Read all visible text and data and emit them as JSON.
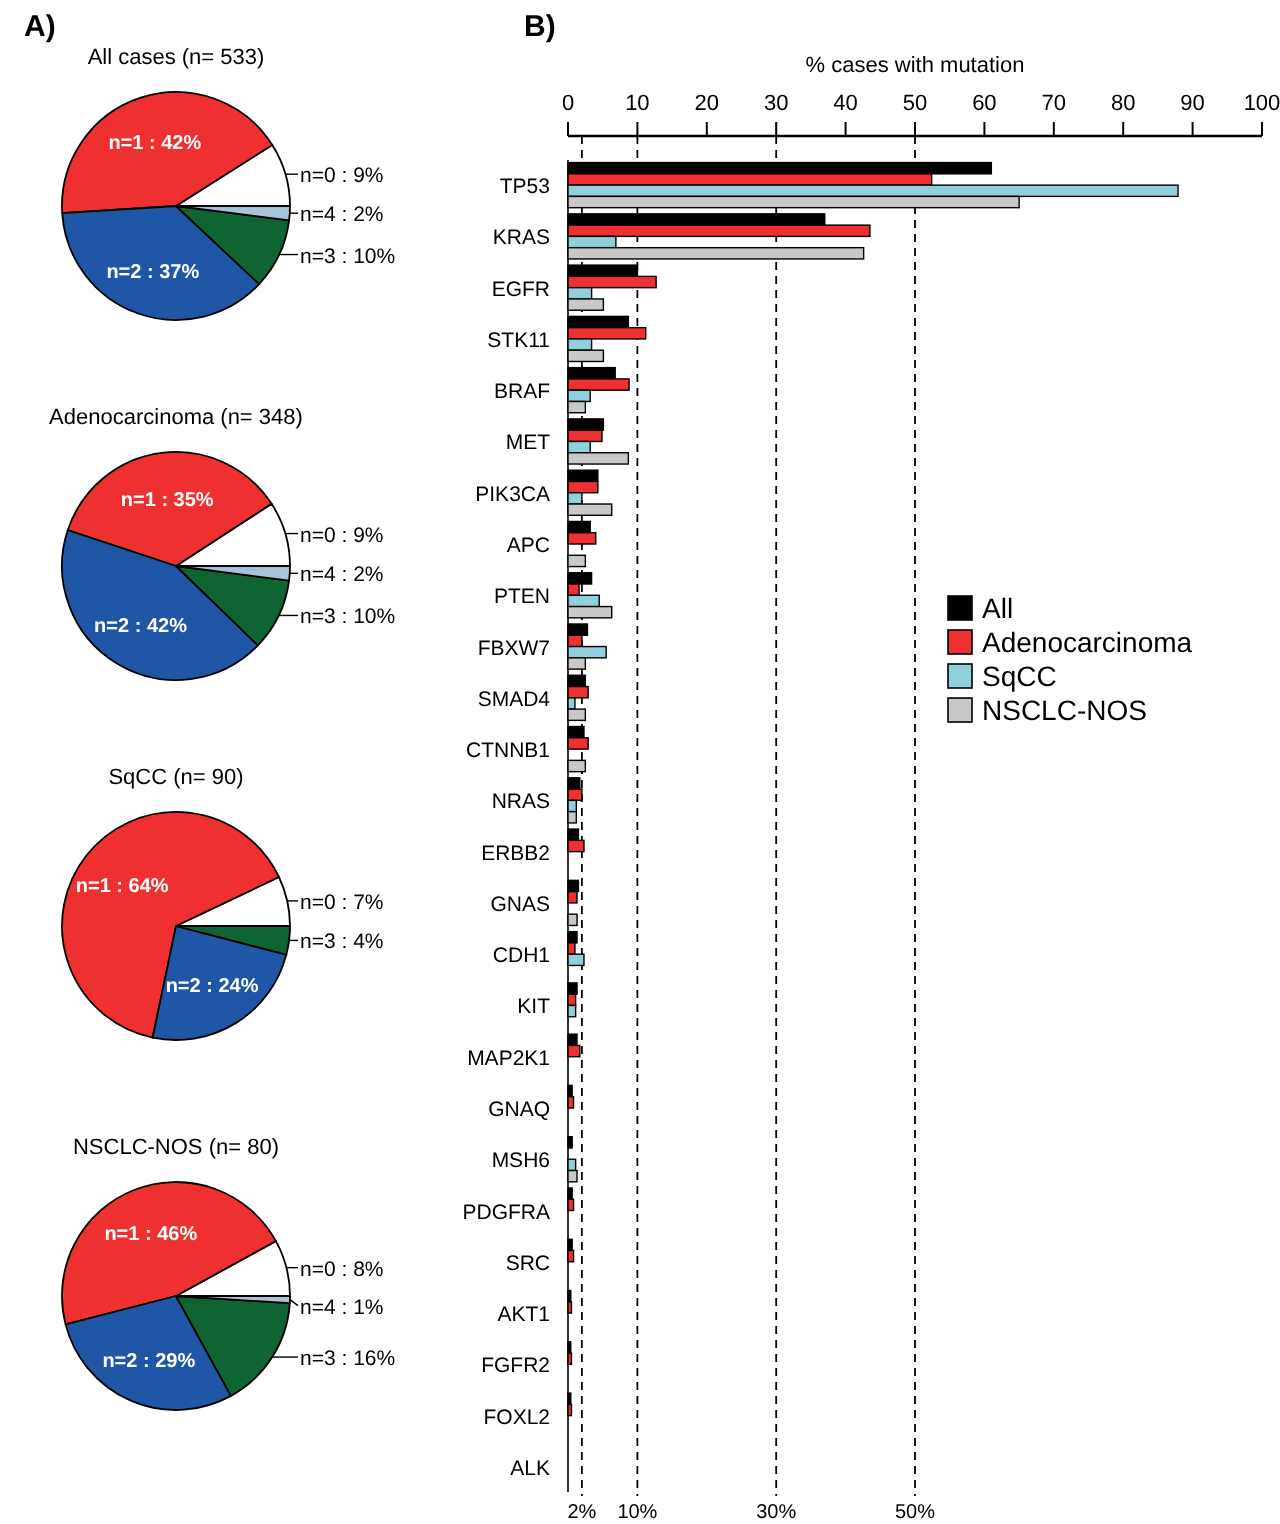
{
  "chart_data": [
    {
      "type": "pie",
      "title": "All cases (n= 533)",
      "annotations": [
        "A)"
      ],
      "categories": [
        "n=0",
        "n=1",
        "n=2",
        "n=3",
        "n=4"
      ],
      "values": [
        9,
        42,
        37,
        10,
        2
      ],
      "value_labels": [
        "9%",
        "42%",
        "37%",
        "10%",
        "2%"
      ],
      "colors": [
        "#ffffff",
        "#ee3030",
        "#1f56a5",
        "#0f6433",
        "#a7c3dc"
      ]
    },
    {
      "type": "pie",
      "title": "Adenocarcinoma (n= 348)",
      "categories": [
        "n=0",
        "n=1",
        "n=2",
        "n=3",
        "n=4"
      ],
      "values": [
        9,
        35,
        42,
        10,
        2
      ],
      "value_labels": [
        "9%",
        "35%",
        "42%",
        "10%",
        "2%"
      ],
      "colors": [
        "#ffffff",
        "#ee3030",
        "#1f56a5",
        "#0f6433",
        "#a7c3dc"
      ]
    },
    {
      "type": "pie",
      "title": "SqCC (n= 90)",
      "categories": [
        "n=0",
        "n=1",
        "n=2",
        "n=3"
      ],
      "values": [
        7,
        64,
        24,
        4
      ],
      "value_labels": [
        "7%",
        "64%",
        "24%",
        "4%"
      ],
      "colors": [
        "#ffffff",
        "#ee3030",
        "#1f56a5",
        "#0f6433"
      ]
    },
    {
      "type": "pie",
      "title": "NSCLC-NOS (n= 80)",
      "categories": [
        "n=0",
        "n=1",
        "n=2",
        "n=3",
        "n=4"
      ],
      "values": [
        8,
        46,
        29,
        16,
        1
      ],
      "value_labels": [
        "8%",
        "46%",
        "29%",
        "16%",
        "1%"
      ],
      "colors": [
        "#ffffff",
        "#ee3030",
        "#1f56a5",
        "#0f6433",
        "#a7c3dc"
      ]
    },
    {
      "type": "bar",
      "orientation": "horizontal",
      "annotations": [
        "B)"
      ],
      "xlabel": "% cases with mutation",
      "legend": "right",
      "xlim": [
        0,
        100
      ],
      "xticks": [
        0,
        10,
        20,
        30,
        40,
        50,
        60,
        70,
        80,
        90,
        100
      ],
      "categories": [
        "TP53",
        "KRAS",
        "EGFR",
        "STK11",
        "BRAF",
        "MET",
        "PIK3CA",
        "APC",
        "PTEN",
        "FBXW7",
        "SMAD4",
        "CTNNB1",
        "NRAS",
        "ERBB2",
        "GNAS",
        "CDH1",
        "KIT",
        "MAP2K1",
        "GNAQ",
        "MSH6",
        "PDGFRA",
        "SRC",
        "AKT1",
        "FGFR2",
        "FOXL2",
        "ALK"
      ],
      "series": [
        {
          "name": "All",
          "color": "#000000",
          "values": [
            61,
            37,
            10,
            8.7,
            6.8,
            5.1,
            4.3,
            3.2,
            3.4,
            2.8,
            2.5,
            2.3,
            1.7,
            1.5,
            1.5,
            1.3,
            1.3,
            1.3,
            0.6,
            0.6,
            0.6,
            0.6,
            0.4,
            0.4,
            0.4,
            null
          ]
        },
        {
          "name": "Adenocarcinoma",
          "color": "#ee3030",
          "values": [
            52.4,
            43.5,
            12.7,
            11.2,
            8.8,
            4.9,
            4.3,
            4,
            1.6,
            2,
            2.9,
            2.9,
            2,
            2.3,
            1.3,
            1,
            1.1,
            1.7,
            0.8,
            0,
            0.8,
            0.8,
            0.5,
            0.5,
            0.5,
            null
          ]
        },
        {
          "name": "SqCC",
          "color": "#8fd0dc",
          "values": [
            87.9,
            6.9,
            3.4,
            3.4,
            3.2,
            3.2,
            2,
            0,
            4.5,
            5.5,
            1,
            0,
            1.2,
            0,
            0,
            2.3,
            1.1,
            0,
            0,
            1.1,
            0,
            0,
            0,
            0,
            0,
            0
          ]
        },
        {
          "name": "NSCLC-NOS",
          "color": "#c8c8c8",
          "values": [
            65,
            42.6,
            5.1,
            5.1,
            2.5,
            8.7,
            6.3,
            2.5,
            6.3,
            2.5,
            2.5,
            2.5,
            1.2,
            0,
            1.3,
            0,
            0,
            0,
            0,
            1.3,
            0,
            0,
            0,
            0,
            0,
            0
          ]
        }
      ],
      "ref_lines": [
        {
          "axis": "x",
          "value": 2,
          "label": "2%",
          "line_style": "dashed"
        },
        {
          "axis": "x",
          "value": 10,
          "label": "10%",
          "line_style": "dashed"
        },
        {
          "axis": "x",
          "value": 30,
          "label": "30%",
          "line_style": "dashed"
        },
        {
          "axis": "x",
          "value": 50,
          "label": "50%",
          "line_style": "dashed"
        }
      ]
    }
  ]
}
